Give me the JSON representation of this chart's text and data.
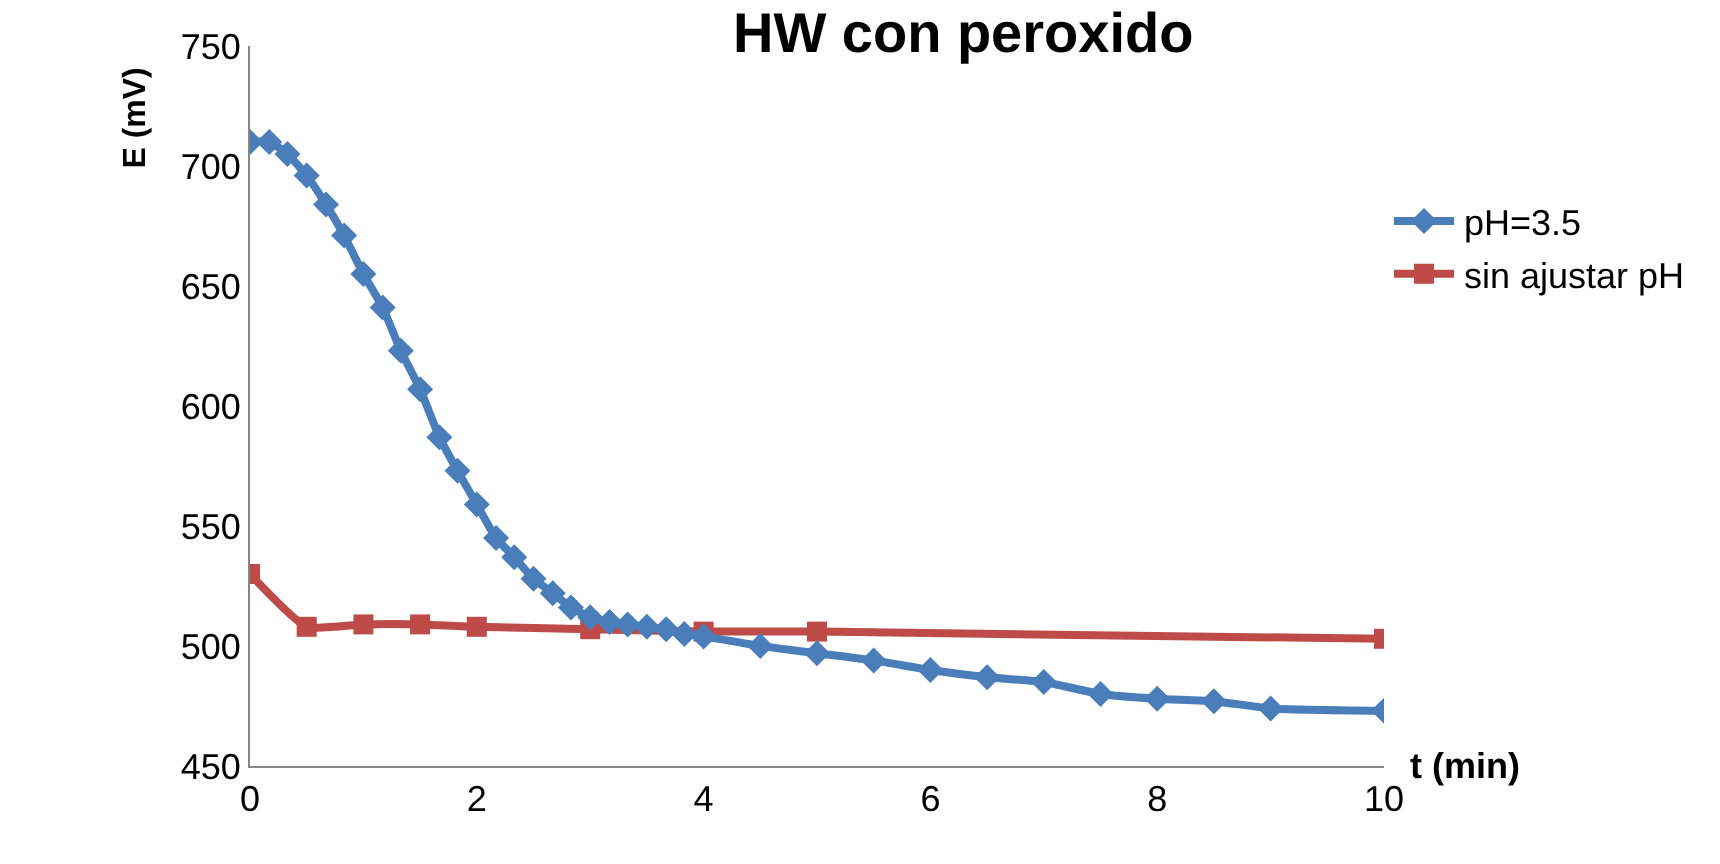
{
  "chart_data": {
    "type": "line",
    "title": "HW con peroxido",
    "xlabel": "t (min)",
    "ylabel": "E (mV)",
    "xlim": [
      0,
      10
    ],
    "xticks": [
      0,
      2,
      4,
      6,
      8,
      10
    ],
    "ylim": [
      450,
      750
    ],
    "yticks": [
      450,
      500,
      550,
      600,
      650,
      700,
      750
    ],
    "grid": false,
    "legend": "right",
    "series": [
      {
        "name": "pH=3.5",
        "color": "#4a7ebb",
        "marker": "diamond",
        "x": [
          0,
          0.17,
          0.33,
          0.5,
          0.67,
          0.83,
          1,
          1.17,
          1.33,
          1.5,
          1.67,
          1.83,
          2,
          2.17,
          2.33,
          2.5,
          2.67,
          2.83,
          3,
          3.17,
          3.33,
          3.5,
          3.67,
          3.83,
          4,
          4.5,
          5,
          5.5,
          6,
          6.5,
          7,
          7.5,
          8,
          8.5,
          9,
          10
        ],
        "values": [
          710,
          710,
          705,
          696,
          684,
          671,
          655,
          641,
          623,
          607,
          587,
          573,
          559,
          545,
          537,
          528,
          522,
          516,
          512,
          510,
          509,
          508,
          507,
          505,
          504,
          500,
          497,
          494,
          490,
          487,
          485,
          480,
          478,
          477,
          474,
          473
        ]
      },
      {
        "name": "sin ajustar pH",
        "color": "#be4b48",
        "marker": "square",
        "x": [
          0,
          0.5,
          1,
          1.5,
          2,
          3,
          4,
          5,
          10
        ],
        "values": [
          530,
          508,
          509,
          509,
          508,
          507,
          506,
          506,
          503
        ]
      }
    ]
  }
}
